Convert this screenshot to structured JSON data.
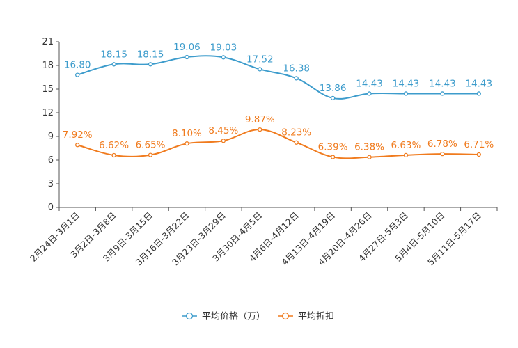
{
  "chart_data": {
    "type": "line",
    "categories": [
      "2月24日-3月1日",
      "3月2日-3月8日",
      "3月9日-3月15日",
      "3月16日-3月22日",
      "3月23日-3月29日",
      "3月30日-4月5日",
      "4月6日-4月12日",
      "4月13日-4月19日",
      "4月20日-4月26日",
      "4月27日-5月3日",
      "5月4日-5月10日",
      "5月11日-5月17日"
    ],
    "series": [
      {
        "name": "平均价格（万）",
        "color": "#3d9ccc",
        "values": [
          16.8,
          18.15,
          18.15,
          19.06,
          19.03,
          17.52,
          16.38,
          13.86,
          14.43,
          14.43,
          14.43,
          14.43
        ],
        "labels": [
          "16.80",
          "18.15",
          "18.15",
          "19.06",
          "19.03",
          "17.52",
          "16.38",
          "13.86",
          "14.43",
          "14.43",
          "14.43",
          "14.43"
        ]
      },
      {
        "name": "平均折扣",
        "color": "#f07b1e",
        "values": [
          7.92,
          6.62,
          6.65,
          8.1,
          8.45,
          9.87,
          8.23,
          6.39,
          6.38,
          6.63,
          6.78,
          6.71
        ],
        "labels": [
          "7.92%",
          "6.62%",
          "6.65%",
          "8.10%",
          "8.45%",
          "9.87%",
          "8.23%",
          "6.39%",
          "6.38%",
          "6.63%",
          "6.78%",
          "6.71%"
        ]
      }
    ],
    "yticks": [
      "0",
      "3",
      "6",
      "9",
      "12",
      "15",
      "18",
      "21"
    ],
    "ylim": [
      0,
      21
    ],
    "legend_position": "bottom-center",
    "title": "",
    "xlabel": "",
    "ylabel": ""
  }
}
